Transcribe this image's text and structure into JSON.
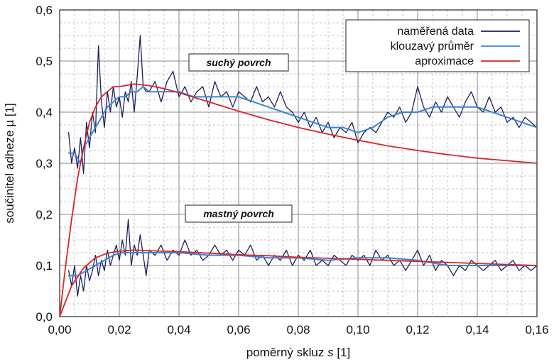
{
  "chart_data": {
    "type": "line",
    "xlabel_prefix": "poměrný skluz ",
    "xlabel_var": "s",
    "xlabel_suffix": " [1]",
    "ylabel": "součinitel adheze µ [1]",
    "xlim": [
      0,
      0.16
    ],
    "ylim": [
      0,
      0.6
    ],
    "x_ticks": [
      0,
      0.02,
      0.04,
      0.06,
      0.08,
      0.1,
      0.12,
      0.14,
      0.16
    ],
    "x_tick_labels": [
      "0,00",
      "0,02",
      "0,04",
      "0,06",
      "0,08",
      "0,10",
      "0,12",
      "0,14",
      "0,16"
    ],
    "y_ticks": [
      0,
      0.1,
      0.2,
      0.3,
      0.4,
      0.5,
      0.6
    ],
    "y_tick_labels": [
      "0,0",
      "0,1",
      "0,2",
      "0,3",
      "0,4",
      "0,5",
      "0,6"
    ],
    "grid": true,
    "legend_position": "top-right",
    "legend": [
      {
        "label": "naměřená data",
        "color": "#1b1f5e"
      },
      {
        "label": "klouzavý průměr",
        "color": "#3a84d6"
      },
      {
        "label": "aproximace",
        "color": "#d92626"
      }
    ],
    "annotations": [
      {
        "text": "suchý povrch",
        "x": 0.048,
        "y": 0.5
      },
      {
        "text": "mastný povrch",
        "x": 0.048,
        "y": 0.2
      }
    ],
    "series": [
      {
        "name": "naměřená data",
        "group": "suchý povrch",
        "color": "#1b1f5e",
        "x": [
          0.003,
          0.004,
          0.005,
          0.006,
          0.007,
          0.008,
          0.009,
          0.01,
          0.011,
          0.012,
          0.013,
          0.014,
          0.015,
          0.016,
          0.017,
          0.018,
          0.019,
          0.02,
          0.021,
          0.022,
          0.023,
          0.024,
          0.025,
          0.026,
          0.027,
          0.028,
          0.029,
          0.03,
          0.032,
          0.034,
          0.036,
          0.038,
          0.04,
          0.042,
          0.044,
          0.046,
          0.048,
          0.05,
          0.052,
          0.054,
          0.056,
          0.058,
          0.06,
          0.062,
          0.064,
          0.066,
          0.068,
          0.07,
          0.072,
          0.074,
          0.076,
          0.078,
          0.08,
          0.082,
          0.084,
          0.086,
          0.088,
          0.09,
          0.092,
          0.094,
          0.096,
          0.098,
          0.1,
          0.102,
          0.104,
          0.106,
          0.108,
          0.11,
          0.112,
          0.114,
          0.116,
          0.118,
          0.12,
          0.122,
          0.124,
          0.126,
          0.128,
          0.13,
          0.132,
          0.134,
          0.136,
          0.138,
          0.14,
          0.142,
          0.144,
          0.146,
          0.148,
          0.15,
          0.152,
          0.154,
          0.156,
          0.158,
          0.16
        ],
        "y": [
          0.36,
          0.3,
          0.33,
          0.29,
          0.35,
          0.28,
          0.38,
          0.33,
          0.4,
          0.36,
          0.53,
          0.42,
          0.37,
          0.44,
          0.4,
          0.45,
          0.41,
          0.43,
          0.39,
          0.44,
          0.42,
          0.46,
          0.4,
          0.47,
          0.55,
          0.45,
          0.44,
          0.44,
          0.46,
          0.42,
          0.46,
          0.48,
          0.43,
          0.45,
          0.42,
          0.44,
          0.45,
          0.41,
          0.46,
          0.43,
          0.44,
          0.41,
          0.44,
          0.43,
          0.42,
          0.45,
          0.42,
          0.43,
          0.41,
          0.44,
          0.41,
          0.4,
          0.38,
          0.4,
          0.37,
          0.39,
          0.36,
          0.38,
          0.35,
          0.37,
          0.36,
          0.38,
          0.34,
          0.36,
          0.37,
          0.36,
          0.38,
          0.4,
          0.39,
          0.41,
          0.38,
          0.4,
          0.45,
          0.41,
          0.39,
          0.42,
          0.4,
          0.43,
          0.41,
          0.39,
          0.42,
          0.44,
          0.41,
          0.4,
          0.43,
          0.4,
          0.41,
          0.38,
          0.39,
          0.37,
          0.39,
          0.38,
          0.37
        ]
      },
      {
        "name": "klouzavý průměr",
        "group": "suchý povrch",
        "color": "#3a84d6",
        "x": [
          0.003,
          0.005,
          0.007,
          0.008,
          0.01,
          0.012,
          0.014,
          0.016,
          0.018,
          0.02,
          0.022,
          0.024,
          0.026,
          0.028,
          0.03,
          0.035,
          0.04,
          0.045,
          0.05,
          0.055,
          0.06,
          0.065,
          0.07,
          0.075,
          0.08,
          0.085,
          0.09,
          0.095,
          0.1,
          0.105,
          0.11,
          0.115,
          0.12,
          0.125,
          0.13,
          0.135,
          0.14,
          0.145,
          0.15,
          0.155,
          0.16
        ],
        "y": [
          0.32,
          0.32,
          0.3,
          0.33,
          0.35,
          0.37,
          0.39,
          0.41,
          0.42,
          0.43,
          0.43,
          0.44,
          0.44,
          0.45,
          0.44,
          0.44,
          0.44,
          0.43,
          0.43,
          0.43,
          0.43,
          0.42,
          0.41,
          0.4,
          0.39,
          0.38,
          0.37,
          0.37,
          0.36,
          0.37,
          0.39,
          0.4,
          0.4,
          0.41,
          0.41,
          0.41,
          0.41,
          0.4,
          0.39,
          0.38,
          0.37
        ]
      },
      {
        "name": "aproximace",
        "group": "suchý povrch",
        "color": "#d92626",
        "x": [
          0,
          0.002,
          0.004,
          0.006,
          0.008,
          0.01,
          0.012,
          0.014,
          0.016,
          0.018,
          0.02,
          0.025,
          0.03,
          0.035,
          0.04,
          0.05,
          0.06,
          0.07,
          0.08,
          0.09,
          0.1,
          0.11,
          0.12,
          0.13,
          0.14,
          0.15,
          0.16
        ],
        "y": [
          0,
          0.1,
          0.19,
          0.27,
          0.33,
          0.38,
          0.41,
          0.43,
          0.44,
          0.45,
          0.45,
          0.455,
          0.452,
          0.446,
          0.438,
          0.42,
          0.402,
          0.385,
          0.37,
          0.357,
          0.345,
          0.334,
          0.325,
          0.317,
          0.31,
          0.305,
          0.3
        ]
      },
      {
        "name": "naměřená data",
        "group": "mastný povrch",
        "color": "#1b1f5e",
        "x": [
          0.003,
          0.004,
          0.005,
          0.006,
          0.007,
          0.008,
          0.009,
          0.01,
          0.011,
          0.012,
          0.013,
          0.014,
          0.015,
          0.016,
          0.017,
          0.018,
          0.019,
          0.02,
          0.021,
          0.022,
          0.023,
          0.024,
          0.025,
          0.026,
          0.027,
          0.028,
          0.029,
          0.03,
          0.032,
          0.034,
          0.036,
          0.038,
          0.04,
          0.042,
          0.044,
          0.046,
          0.048,
          0.05,
          0.052,
          0.054,
          0.056,
          0.058,
          0.06,
          0.062,
          0.064,
          0.066,
          0.068,
          0.07,
          0.072,
          0.074,
          0.076,
          0.078,
          0.08,
          0.082,
          0.084,
          0.086,
          0.088,
          0.09,
          0.092,
          0.094,
          0.096,
          0.098,
          0.1,
          0.102,
          0.104,
          0.106,
          0.108,
          0.11,
          0.112,
          0.114,
          0.116,
          0.118,
          0.12,
          0.122,
          0.124,
          0.126,
          0.128,
          0.13,
          0.132,
          0.134,
          0.136,
          0.138,
          0.14,
          0.142,
          0.144,
          0.146,
          0.148,
          0.15,
          0.152,
          0.154,
          0.156,
          0.158,
          0.16
        ],
        "y": [
          0.09,
          0.06,
          0.1,
          0.04,
          0.08,
          0.05,
          0.1,
          0.07,
          0.09,
          0.12,
          0.08,
          0.11,
          0.09,
          0.13,
          0.1,
          0.12,
          0.14,
          0.11,
          0.15,
          0.12,
          0.19,
          0.1,
          0.14,
          0.12,
          0.16,
          0.12,
          0.08,
          0.13,
          0.12,
          0.14,
          0.11,
          0.13,
          0.12,
          0.15,
          0.12,
          0.13,
          0.11,
          0.12,
          0.14,
          0.12,
          0.13,
          0.11,
          0.13,
          0.12,
          0.14,
          0.11,
          0.12,
          0.1,
          0.12,
          0.11,
          0.13,
          0.1,
          0.12,
          0.11,
          0.13,
          0.1,
          0.11,
          0.1,
          0.12,
          0.11,
          0.1,
          0.12,
          0.11,
          0.12,
          0.1,
          0.13,
          0.11,
          0.12,
          0.1,
          0.11,
          0.09,
          0.11,
          0.13,
          0.1,
          0.12,
          0.09,
          0.11,
          0.1,
          0.08,
          0.1,
          0.09,
          0.11,
          0.1,
          0.09,
          0.1,
          0.11,
          0.09,
          0.1,
          0.11,
          0.09,
          0.1,
          0.09,
          0.1
        ]
      },
      {
        "name": "klouzavý průměr",
        "group": "mastný povrch",
        "color": "#3a84d6",
        "x": [
          0.003,
          0.006,
          0.009,
          0.012,
          0.015,
          0.018,
          0.021,
          0.025,
          0.03,
          0.04,
          0.05,
          0.06,
          0.07,
          0.08,
          0.09,
          0.1,
          0.11,
          0.12,
          0.13,
          0.14,
          0.15,
          0.16
        ],
        "y": [
          0.08,
          0.08,
          0.09,
          0.1,
          0.11,
          0.12,
          0.125,
          0.125,
          0.125,
          0.125,
          0.12,
          0.12,
          0.115,
          0.115,
          0.11,
          0.115,
          0.115,
          0.11,
          0.1,
          0.1,
          0.1,
          0.1
        ]
      },
      {
        "name": "aproximace",
        "group": "mastný povrch",
        "color": "#d92626",
        "x": [
          0,
          0.004,
          0.008,
          0.012,
          0.016,
          0.02,
          0.025,
          0.03,
          0.04,
          0.05,
          0.06,
          0.07,
          0.08,
          0.09,
          0.1,
          0.11,
          0.12,
          0.13,
          0.14,
          0.15,
          0.16
        ],
        "y": [
          0,
          0.06,
          0.095,
          0.115,
          0.124,
          0.128,
          0.13,
          0.129,
          0.127,
          0.124,
          0.121,
          0.119,
          0.116,
          0.114,
          0.112,
          0.11,
          0.108,
          0.106,
          0.104,
          0.102,
          0.1
        ]
      }
    ]
  }
}
